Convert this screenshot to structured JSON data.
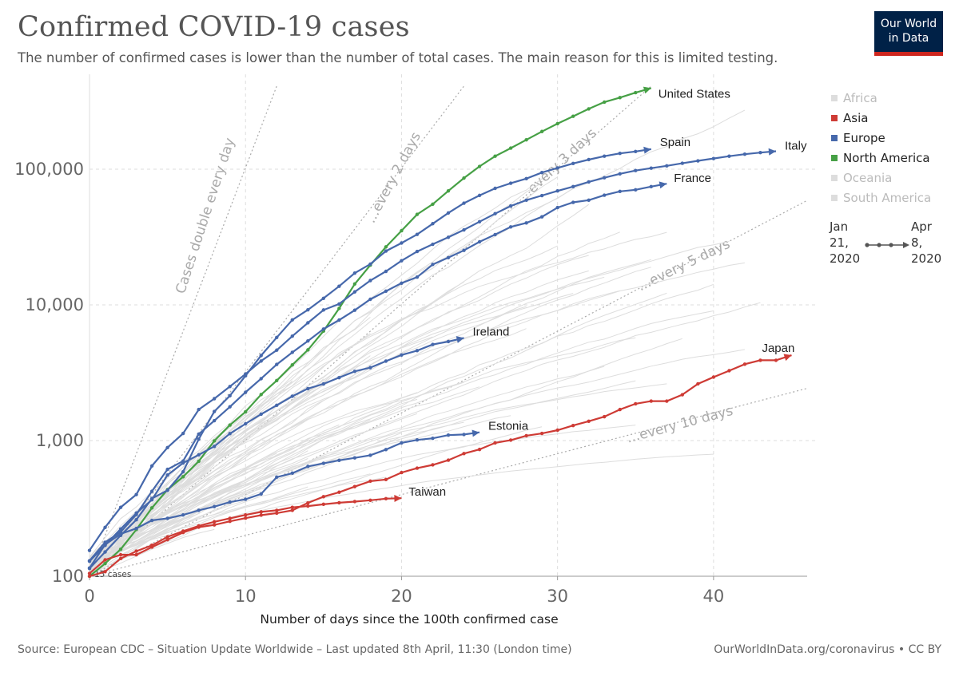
{
  "header": {
    "title": "Confirmed COVID-19 cases",
    "subtitle": "The number of confirmed cases is lower than the number of total cases. The main reason for this is limited testing.",
    "logo_line1": "Our World",
    "logo_line2": "in Data"
  },
  "footer": {
    "source": "Source: European CDC – Situation Update Worldwide – Last updated 8th April, 11:30 (London time)",
    "credit": "OurWorldInData.org/coronavirus • CC BY"
  },
  "legend": [
    {
      "name": "Africa",
      "color": "#bbbbbb",
      "active": false
    },
    {
      "name": "Asia",
      "color": "#ce3b35",
      "active": true
    },
    {
      "name": "Europe",
      "color": "#4668ab",
      "active": true
    },
    {
      "name": "North America",
      "color": "#46a045",
      "active": true
    },
    {
      "name": "Oceania",
      "color": "#bbbbbb",
      "active": false
    },
    {
      "name": "South America",
      "color": "#bbbbbb",
      "active": false
    }
  ],
  "timeline": {
    "start": "Jan\n21,\n2020",
    "end": "Apr\n8,\n2020"
  },
  "chart_data": {
    "type": "line",
    "title": "Confirmed COVID-19 cases",
    "xlabel": "Number of days since the 100th confirmed case",
    "ylabel": "",
    "yscale": "log",
    "xlim": [
      0,
      46
    ],
    "ylim": [
      100,
      500000
    ],
    "x_ticks": [
      0,
      10,
      20,
      30,
      40
    ],
    "y_ticks": [
      100,
      1000,
      10000,
      100000
    ],
    "y_tick_labels": [
      "100",
      "1,000",
      "10,000",
      "100,000"
    ],
    "start_label": "15 cases",
    "colors": {
      "Asia": "#ce3b35",
      "Europe": "#4668ab",
      "North America": "#46a045",
      "other": "#dddddd",
      "guide": "#aaaaaa"
    },
    "guides": [
      {
        "label": "Cases double every day",
        "days": 1,
        "x_end": 12
      },
      {
        "label": "...every 2 days",
        "days": 2,
        "x_end": 24
      },
      {
        "label": "...every 3 days",
        "days": 3,
        "x_end": 36
      },
      {
        "label": "...every 5 days",
        "days": 5,
        "x_end": 46
      },
      {
        "label": "...every 10 days",
        "days": 10,
        "x_end": 46
      }
    ],
    "series": [
      {
        "name": "United States",
        "region": "North America",
        "values": [
          100,
          124,
          158,
          221,
          319,
          435,
          541,
          704,
          994,
          1301,
          1630,
          2183,
          2770,
          3613,
          4660,
          6411,
          9415,
          14250,
          19624,
          26747,
          35206,
          46442,
          55231,
          69194,
          86012,
          104837,
          124686,
          143025,
          164620,
          189618,
          216721,
          245573,
          278458,
          312237,
          337072,
          366614,
          396223
        ]
      },
      {
        "name": "Spain",
        "region": "Europe",
        "values": [
          114,
          151,
          200,
          261,
          374,
          430,
          589,
          1024,
          1639,
          2140,
          3003,
          4231,
          5753,
          7753,
          9191,
          11178,
          13716,
          17147,
          19980,
          24926,
          28572,
          33089,
          39673,
          47610,
          56188,
          64059,
          72248,
          78797,
          85195,
          94417,
          102136,
          110238,
          117710,
          124736,
          130759,
          135032,
          140510
        ]
      },
      {
        "name": "Italy",
        "region": "Europe",
        "values": [
          155,
          229,
          322,
          400,
          650,
          888,
          1128,
          1694,
          2036,
          2502,
          3089,
          3858,
          4636,
          5883,
          7375,
          9172,
          10149,
          12462,
          15113,
          17660,
          21157,
          24747,
          27980,
          31506,
          35713,
          41035,
          47021,
          53578,
          59138,
          63927,
          69176,
          74386,
          80589,
          86498,
          92472,
          97689,
          101739,
          105792,
          110574,
          115242,
          119827,
          124632,
          128948,
          132547,
          135586
        ]
      },
      {
        "name": "France",
        "region": "Europe",
        "values": [
          130,
          178,
          212,
          285,
          423,
          613,
          706,
          1116,
          1402,
          1774,
          2269,
          2860,
          3640,
          4469,
          5423,
          6633,
          7730,
          9134,
          10995,
          12612,
          14459,
          16018,
          19856,
          22302,
          25233,
          29155,
          32964,
          37575,
          40174,
          44550,
          52128,
          56989,
          59105,
          64338,
          68605,
          70478,
          74390,
          78167
        ]
      },
      {
        "name": "Ireland",
        "region": "Europe",
        "values": [
          129,
          169,
          223,
          292,
          366,
          557,
          683,
          785,
          906,
          1125,
          1329,
          1564,
          1819,
          2121,
          2415,
          2615,
          2910,
          3235,
          3447,
          3849,
          4273,
          4604,
          5111,
          5364,
          5709
        ]
      },
      {
        "name": "Estonia",
        "region": "Europe",
        "values": [
          115,
          171,
          205,
          225,
          258,
          267,
          283,
          306,
          326,
          352,
          369,
          404,
          538,
          575,
          645,
          679,
          715,
          745,
          779,
          858,
          961,
          1011,
          1039,
          1097,
          1108,
          1149
        ]
      },
      {
        "name": "Japan",
        "region": "Asia",
        "values": [
          105,
          132,
          144,
          144,
          164,
          186,
          210,
          230,
          239,
          254,
          268,
          282,
          292,
          306,
          347,
          386,
          416,
          458,
          502,
          516,
          581,
          626,
          662,
          717,
          802,
          860,
          961,
          1007,
          1086,
          1128,
          1193,
          1291,
          1387,
          1499,
          1693,
          1866,
          1953,
          1953,
          2178,
          2617,
          2935,
          3271,
          3654,
          3906,
          3906,
          4257
        ]
      },
      {
        "name": "Taiwan",
        "region": "Asia",
        "values": [
          100,
          108,
          135,
          153,
          169,
          195,
          215,
          235,
          252,
          267,
          283,
          298,
          306,
          322,
          329,
          339,
          348,
          355,
          363,
          373,
          376
        ]
      }
    ]
  }
}
